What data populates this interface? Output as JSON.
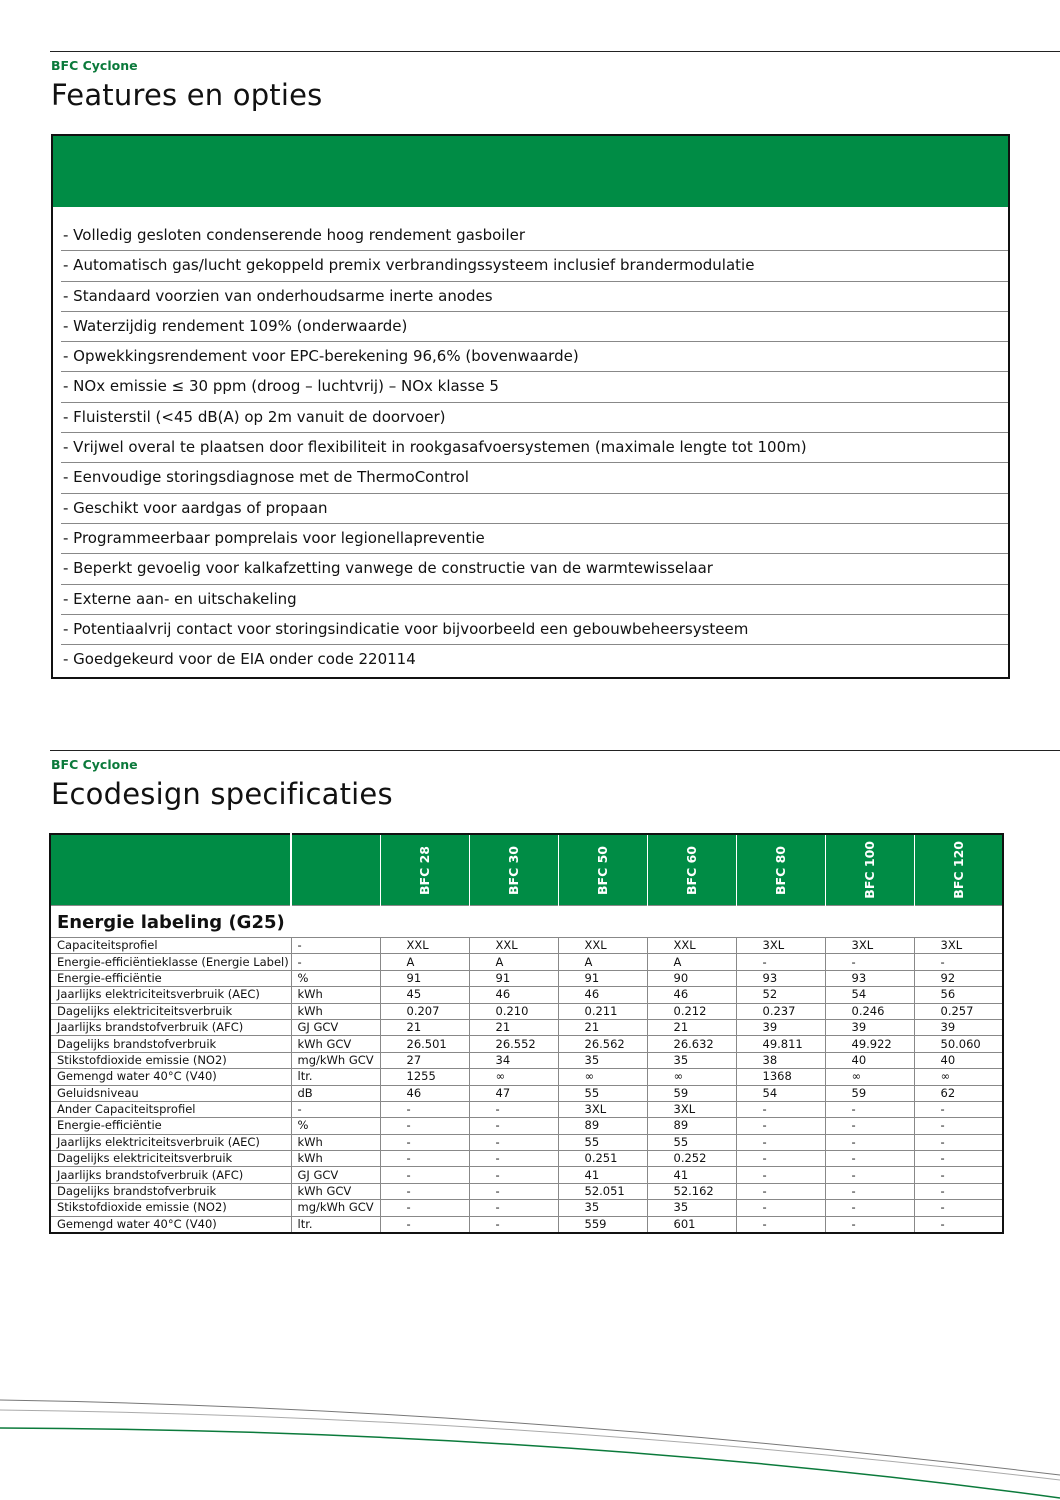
{
  "features": {
    "brand": "BFC Cyclone",
    "title": "Features en opties",
    "items": [
      "- Volledig gesloten condenserende hoog rendement gasboiler",
      "- Automatisch gas/lucht gekoppeld premix verbrandingssysteem inclusief brandermodulatie",
      "- Standaard voorzien van onderhoudsarme inerte anodes",
      "- Waterzijdig rendement 109% (onderwaarde)",
      "- Opwekkingsrendement voor EPC-berekening 96,6% (bovenwaarde)",
      "- NOx emissie ≤ 30 ppm (droog – luchtvrij) – NOx klasse 5",
      "- Fluisterstil (<45 dB(A) op 2m vanuit de doorvoer)",
      "- Vrijwel overal te plaatsen door flexibiliteit in rookgasafvoersystemen (maximale lengte tot 100m)",
      "- Eenvoudige storingsdiagnose met de ThermoControl",
      "- Geschikt voor aardgas of propaan",
      "- Programmeerbaar pomprelais voor legionellapreventie",
      "- Beperkt gevoelig voor kalkafzetting vanwege de constructie van de warmtewisselaar",
      "- Externe aan- en uitschakeling",
      "- Potentiaalvrij contact voor storingsindicatie voor bijvoorbeeld een gebouwbeheersysteem",
      "- Goedgekeurd voor de EIA onder code 220114"
    ]
  },
  "ecodesign": {
    "brand": "BFC Cyclone",
    "title": "Ecodesign specificaties",
    "section_label": "Energie labeling (G25)",
    "models": [
      "BFC 28",
      "BFC 30",
      "BFC 50",
      "BFC 60",
      "BFC 80",
      "BFC 100",
      "BFC 120"
    ],
    "rows": [
      {
        "label": "Capaciteitsprofiel",
        "unit": "-",
        "values": [
          "XXL",
          "XXL",
          "XXL",
          "XXL",
          "3XL",
          "3XL",
          "3XL"
        ]
      },
      {
        "label": "Energie-efficiëntieklasse (Energie Label)",
        "unit": "-",
        "values": [
          "A",
          "A",
          "A",
          "A",
          "-",
          "-",
          "-"
        ]
      },
      {
        "label": "Energie-efficiëntie",
        "unit": "%",
        "values": [
          "91",
          "91",
          "91",
          "90",
          "93",
          "93",
          "92"
        ]
      },
      {
        "label": "Jaarlijks elektriciteitsverbruik (AEC)",
        "unit": "kWh",
        "values": [
          "45",
          "46",
          "46",
          "46",
          "52",
          "54",
          "56"
        ]
      },
      {
        "label": "Dagelijks elektriciteitsverbruik",
        "unit": "kWh",
        "values": [
          "0.207",
          "0.210",
          "0.211",
          "0.212",
          "0.237",
          "0.246",
          "0.257"
        ]
      },
      {
        "label": "Jaarlijks brandstofverbruik (AFC)",
        "unit": "GJ GCV",
        "values": [
          "21",
          "21",
          "21",
          "21",
          "39",
          "39",
          "39"
        ]
      },
      {
        "label": "Dagelijks brandstofverbruik",
        "unit": "kWh GCV",
        "values": [
          "26.501",
          "26.552",
          "26.562",
          "26.632",
          "49.811",
          "49.922",
          "50.060"
        ]
      },
      {
        "label": "Stikstofdioxide emissie (NO2)",
        "unit": "mg/kWh GCV",
        "values": [
          "27",
          "34",
          "35",
          "35",
          "38",
          "40",
          "40"
        ]
      },
      {
        "label": "Gemengd water 40°C (V40)",
        "unit": "ltr.",
        "values": [
          "1255",
          "∞",
          "∞",
          "∞",
          "1368",
          "∞",
          "∞"
        ]
      },
      {
        "label": "Geluidsniveau",
        "unit": "dB",
        "values": [
          "46",
          "47",
          "55",
          "59",
          "54",
          "59",
          "62"
        ]
      },
      {
        "label": "Ander Capaciteitsprofiel",
        "unit": "-",
        "values": [
          "-",
          "-",
          "3XL",
          "3XL",
          "-",
          "-",
          "-"
        ]
      },
      {
        "label": "Energie-efficiëntie",
        "unit": "%",
        "values": [
          "-",
          "-",
          "89",
          "89",
          "-",
          "-",
          "-"
        ]
      },
      {
        "label": "Jaarlijks elektriciteitsverbruik (AEC)",
        "unit": "kWh",
        "values": [
          "-",
          "-",
          "55",
          "55",
          "-",
          "-",
          "-"
        ]
      },
      {
        "label": "Dagelijks elektriciteitsverbruik",
        "unit": "kWh",
        "values": [
          "-",
          "-",
          "0.251",
          "0.252",
          "-",
          "-",
          "-"
        ]
      },
      {
        "label": "Jaarlijks brandstofverbruik (AFC)",
        "unit": "GJ GCV",
        "values": [
          "-",
          "-",
          "41",
          "41",
          "-",
          "-",
          "-"
        ]
      },
      {
        "label": "Dagelijks brandstofverbruik",
        "unit": "kWh GCV",
        "values": [
          "-",
          "-",
          "52.051",
          "52.162",
          "-",
          "-",
          "-"
        ]
      },
      {
        "label": "Stikstofdioxide emissie (NO2)",
        "unit": "mg/kWh GCV",
        "values": [
          "-",
          "-",
          "35",
          "35",
          "-",
          "-",
          "-"
        ]
      },
      {
        "label": "Gemengd water 40°C (V40)",
        "unit": "ltr.",
        "values": [
          "-",
          "-",
          "559",
          "601",
          "-",
          "-",
          "-"
        ]
      }
    ]
  },
  "colors": {
    "brand_green": "#008c45",
    "brand_text": "#0b7a3b"
  }
}
